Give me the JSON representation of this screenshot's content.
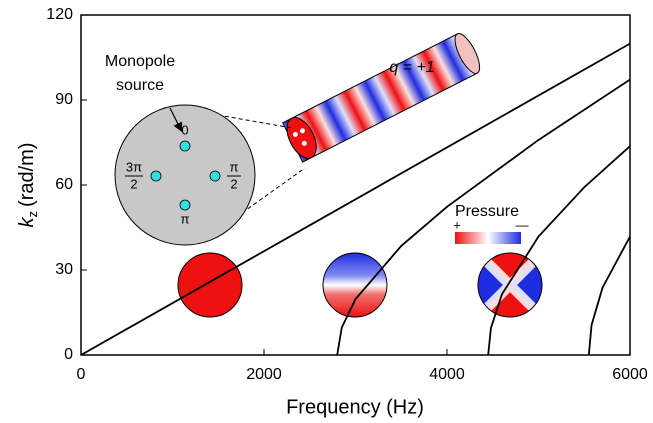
{
  "chart_data": {
    "type": "line",
    "x_label": "Frequency (Hz)",
    "y_label": {
      "symbol": "k",
      "subscript": "z",
      "unit": "(rad/m)"
    },
    "xlim": [
      0,
      6000
    ],
    "ylim": [
      0,
      120
    ],
    "xticks": [
      0,
      2000,
      4000,
      6000
    ],
    "yticks": [
      0,
      30,
      60,
      90,
      120
    ],
    "series": [
      {
        "color": "#000000",
        "x": [
          0,
          6000
        ],
        "values": [
          0,
          109.9
        ]
      },
      {
        "color": "#000000",
        "x": [
          2800,
          2850,
          3000,
          3500,
          4000,
          5000,
          6000
        ],
        "values": [
          0,
          9.7,
          19.7,
          38.5,
          52.3,
          75.9,
          97.2
        ]
      },
      {
        "color": "#000000",
        "x": [
          4450,
          4480,
          4600,
          5000,
          5500,
          6000
        ],
        "values": [
          0,
          9.5,
          21.4,
          41.8,
          59.2,
          73.7
        ]
      },
      {
        "color": "#000000",
        "x": [
          5550,
          5580,
          5700,
          6000
        ],
        "values": [
          0,
          10.6,
          23.8,
          41.8
        ]
      }
    ],
    "annotations": {
      "source_label": [
        "Monopole",
        "source"
      ],
      "charge": "q = +1",
      "pressure": "Pressure",
      "plus": "+",
      "minus": "—",
      "phases": [
        {
          "text": "0"
        },
        {
          "numerator": "π",
          "denominator": "2"
        },
        {
          "text": "π"
        },
        {
          "numerator": "3π",
          "denominator": "2"
        }
      ]
    }
  }
}
